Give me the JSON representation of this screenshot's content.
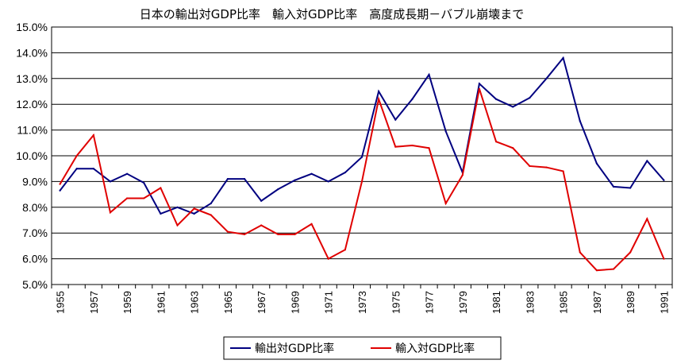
{
  "chart_data": {
    "type": "line",
    "title": "日本の輸出対GDP比率　輸入対GDP比率　高度成長期－バブル崩壊まで",
    "xlabel": "",
    "ylabel": "",
    "x": [
      1955,
      1956,
      1957,
      1958,
      1959,
      1960,
      1961,
      1962,
      1963,
      1964,
      1965,
      1966,
      1967,
      1968,
      1969,
      1970,
      1971,
      1972,
      1973,
      1974,
      1975,
      1976,
      1977,
      1978,
      1979,
      1980,
      1981,
      1982,
      1983,
      1984,
      1985,
      1986,
      1987,
      1988,
      1989,
      1990,
      1991
    ],
    "x_tick_labels": [
      "1955",
      "1957",
      "1959",
      "1961",
      "1963",
      "1965",
      "1967",
      "1969",
      "1971",
      "1973",
      "1975",
      "1977",
      "1979",
      "1981",
      "1983",
      "1985",
      "1987",
      "1989",
      "1991"
    ],
    "y_tick_labels": [
      "5.0%",
      "6.0%",
      "7.0%",
      "8.0%",
      "9.0%",
      "10.0%",
      "11.0%",
      "12.0%",
      "13.0%",
      "14.0%",
      "15.0%"
    ],
    "ylim": [
      5.0,
      15.0
    ],
    "y_unit": "%",
    "grid": true,
    "legend_position": "bottom",
    "series": [
      {
        "name": "輸出対GDP比率",
        "color": "#000080",
        "values": [
          8.65,
          9.5,
          9.5,
          9.0,
          9.3,
          8.95,
          7.75,
          8.0,
          7.75,
          8.15,
          9.1,
          9.1,
          8.25,
          8.7,
          9.05,
          9.3,
          9.0,
          9.35,
          9.95,
          12.5,
          11.4,
          12.2,
          13.15,
          10.95,
          9.35,
          12.8,
          12.2,
          11.9,
          12.25,
          13.0,
          13.8,
          11.35,
          9.7,
          8.8,
          8.75,
          9.8,
          9.05
        ]
      },
      {
        "name": "輸入対GDP比率",
        "color": "#e00000",
        "values": [
          8.9,
          10.0,
          10.8,
          7.8,
          8.35,
          8.35,
          8.75,
          7.3,
          7.95,
          7.7,
          7.05,
          6.95,
          7.3,
          6.95,
          6.95,
          7.35,
          6.0,
          6.35,
          9.0,
          12.2,
          10.35,
          10.4,
          10.3,
          8.15,
          9.25,
          12.6,
          10.55,
          10.3,
          9.6,
          9.55,
          9.4,
          6.25,
          5.55,
          5.6,
          6.25,
          7.55,
          6.0
        ]
      }
    ]
  }
}
